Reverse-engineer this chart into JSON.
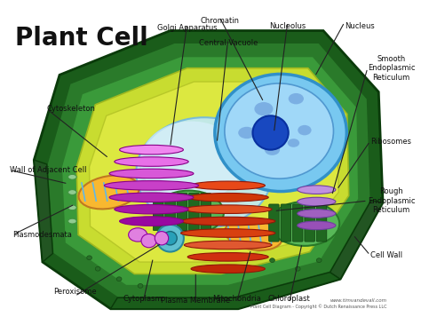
{
  "title": "Plant Cell",
  "bg": "#ffffff",
  "cell_wall_outer": "#2d6a2d",
  "cell_wall_mid": "#3a8a3a",
  "cell_wall_inner": "#4aaa4a",
  "cytoplasm_fill": "#d8e84a",
  "cytoplasm_edge": "#c0d020",
  "vacuole_fill": "#b8e8f8",
  "vacuole_edge": "#60b8e0",
  "nucleus_outer_fill": "#70c8f0",
  "nucleus_outer_edge": "#2888c0",
  "nucleus_inner_fill": "#90d8f8",
  "nucleolus_fill": "#1848b0",
  "nucleolus_edge": "#0828a0",
  "golgi_colors": [
    "#f080f0",
    "#e060e0",
    "#d040d0",
    "#c020c0",
    "#b000b0",
    "#9800a8"
  ],
  "rough_er_colors": [
    "#e05020",
    "#d04010",
    "#c83010"
  ],
  "smooth_er_color": "#b890e0",
  "mito_fill": "#f8b830",
  "mito_edge": "#c07010",
  "chloro_fill": "#50b850",
  "chloro_edge": "#287028",
  "chloro_grana": "#206820",
  "perox_fill": "#60c8d8",
  "perox_inner": "#2898a8",
  "watermark": "www.timvandevall.com",
  "copyright": "Plant Cell Diagram - Copyright © Dutch Renaissance Press LLC"
}
